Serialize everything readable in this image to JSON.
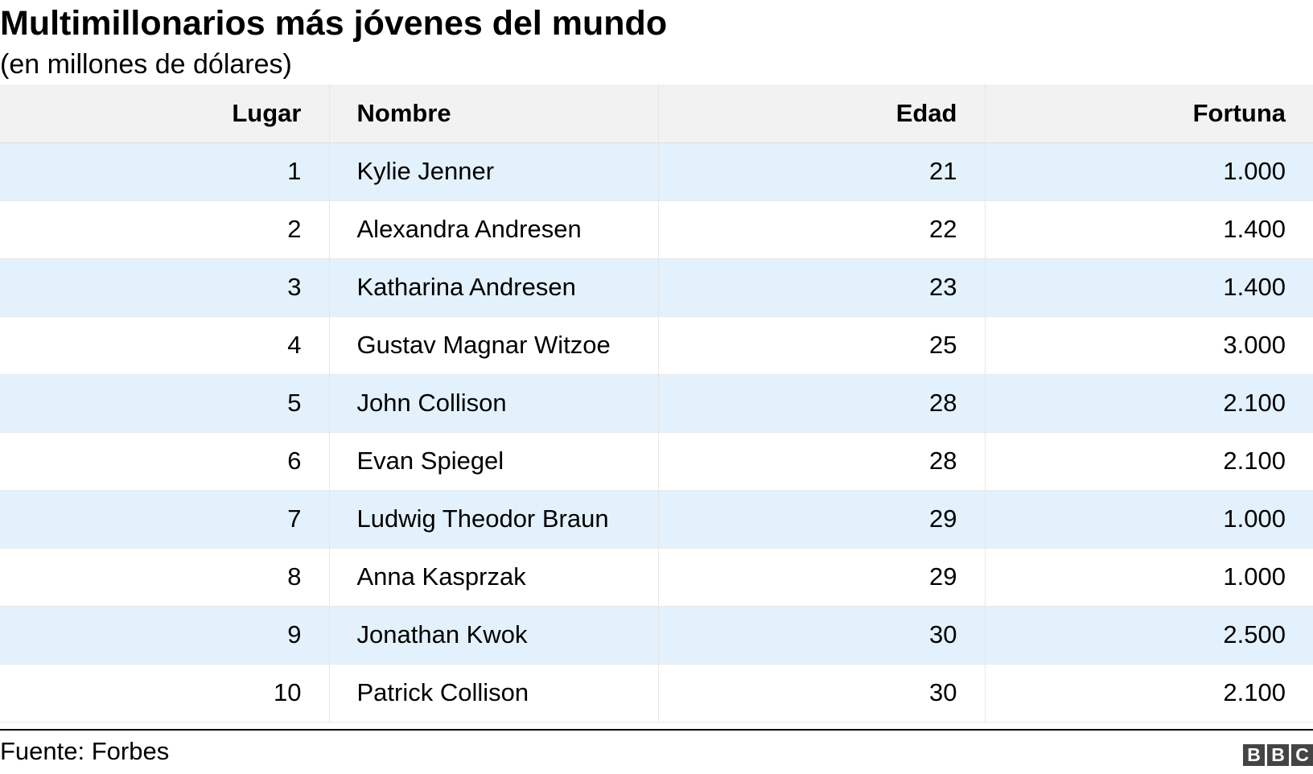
{
  "chart_data": {
    "type": "table",
    "title": "Multimillonarios más jóvenes del mundo",
    "subtitle": "(en millones de dólares)",
    "columns": [
      "Lugar",
      "Nombre",
      "Edad",
      "Fortuna"
    ],
    "rows": [
      {
        "rank": "1",
        "name": "Kylie Jenner",
        "age": "21",
        "fortune": "1.000"
      },
      {
        "rank": "2",
        "name": "Alexandra Andresen",
        "age": "22",
        "fortune": "1.400"
      },
      {
        "rank": "3",
        "name": "Katharina Andresen",
        "age": "23",
        "fortune": "1.400"
      },
      {
        "rank": "4",
        "name": "Gustav Magnar Witzoe",
        "age": "25",
        "fortune": "3.000"
      },
      {
        "rank": "5",
        "name": "John Collison",
        "age": "28",
        "fortune": "2.100"
      },
      {
        "rank": "6",
        "name": "Evan Spiegel",
        "age": "28",
        "fortune": "2.100"
      },
      {
        "rank": "7",
        "name": "Ludwig Theodor Braun",
        "age": "29",
        "fortune": "1.000"
      },
      {
        "rank": "8",
        "name": "Anna Kasprzak",
        "age": "29",
        "fortune": "1.000"
      },
      {
        "rank": "9",
        "name": "Jonathan Kwok",
        "age": "30",
        "fortune": "2.500"
      },
      {
        "rank": "10",
        "name": "Patrick Collison",
        "age": "30",
        "fortune": "2.100"
      }
    ],
    "source": "Fuente: Forbes"
  },
  "colors": {
    "header_bg": "#f2f2f2",
    "row_alt_bg": "#e3f1fc",
    "row_bg": "#ffffff"
  },
  "logo": {
    "icon": "bbc-logo-icon",
    "letters": [
      "B",
      "B",
      "C"
    ]
  }
}
